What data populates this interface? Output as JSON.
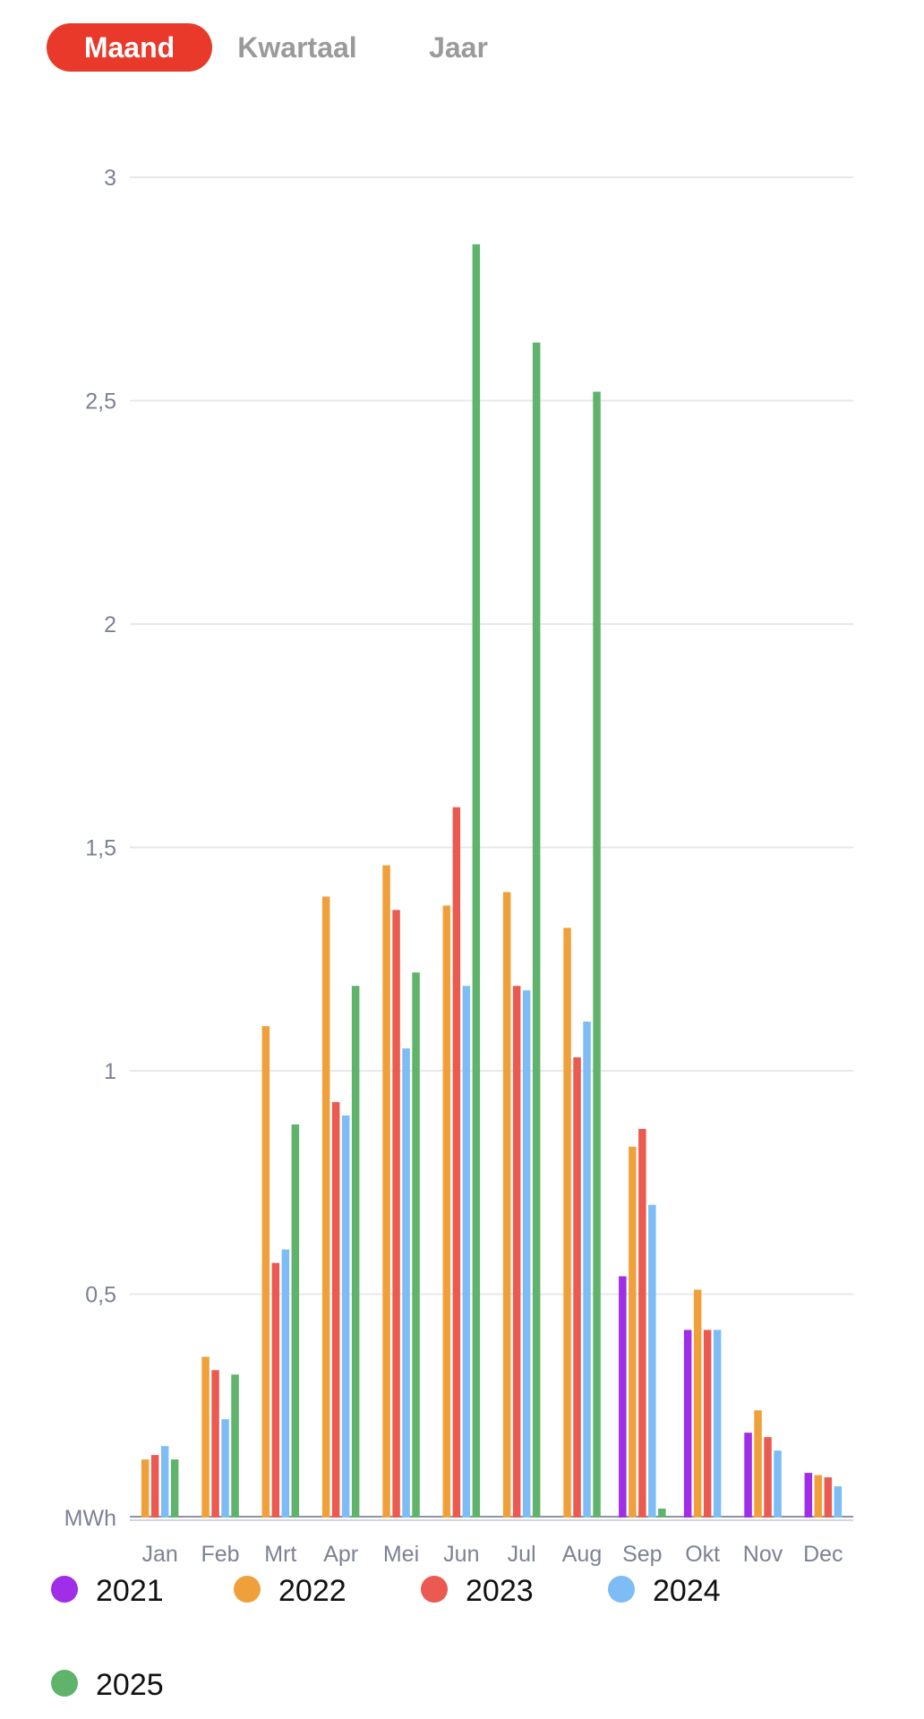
{
  "tabs": [
    {
      "label": "Maand",
      "active": true
    },
    {
      "label": "Kwartaal",
      "active": false
    },
    {
      "label": "Jaar",
      "active": false
    }
  ],
  "chart_data": {
    "type": "bar",
    "categories": [
      "Jan",
      "Feb",
      "Mrt",
      "Apr",
      "Mei",
      "Jun",
      "Jul",
      "Aug",
      "Sep",
      "Okt",
      "Nov",
      "Dec"
    ],
    "ylim": [
      0,
      3
    ],
    "yticks": [
      {
        "value": 3,
        "label": "3"
      },
      {
        "value": 2.5,
        "label": "2,5"
      },
      {
        "value": 2,
        "label": "2"
      },
      {
        "value": 1.5,
        "label": "1,5"
      },
      {
        "value": 1,
        "label": "1"
      },
      {
        "value": 0.5,
        "label": "0,5"
      }
    ],
    "unit_label": "MWh",
    "grid": true,
    "legend_position": "bottom",
    "series": [
      {
        "name": "2021",
        "color": "#a02de8",
        "values": [
          null,
          null,
          null,
          null,
          null,
          null,
          null,
          null,
          0.54,
          0.42,
          0.19,
          0.1
        ]
      },
      {
        "name": "2022",
        "color": "#f0a03a",
        "values": [
          0.13,
          0.36,
          1.1,
          1.39,
          1.46,
          1.37,
          1.4,
          1.32,
          0.83,
          0.51,
          0.24,
          0.095
        ]
      },
      {
        "name": "2023",
        "color": "#ea5a50",
        "values": [
          0.14,
          0.33,
          0.57,
          0.93,
          1.36,
          1.59,
          1.19,
          1.03,
          0.87,
          0.42,
          0.18,
          0.09
        ]
      },
      {
        "name": "2024",
        "color": "#7dbcf5",
        "values": [
          0.16,
          0.22,
          0.6,
          0.9,
          1.05,
          1.19,
          1.18,
          1.11,
          0.7,
          0.42,
          0.15,
          0.07
        ]
      },
      {
        "name": "2025",
        "color": "#5fb36a",
        "values": [
          0.13,
          0.32,
          0.88,
          1.19,
          1.22,
          2.85,
          2.63,
          2.52,
          0.02,
          null,
          null,
          null
        ]
      }
    ]
  }
}
